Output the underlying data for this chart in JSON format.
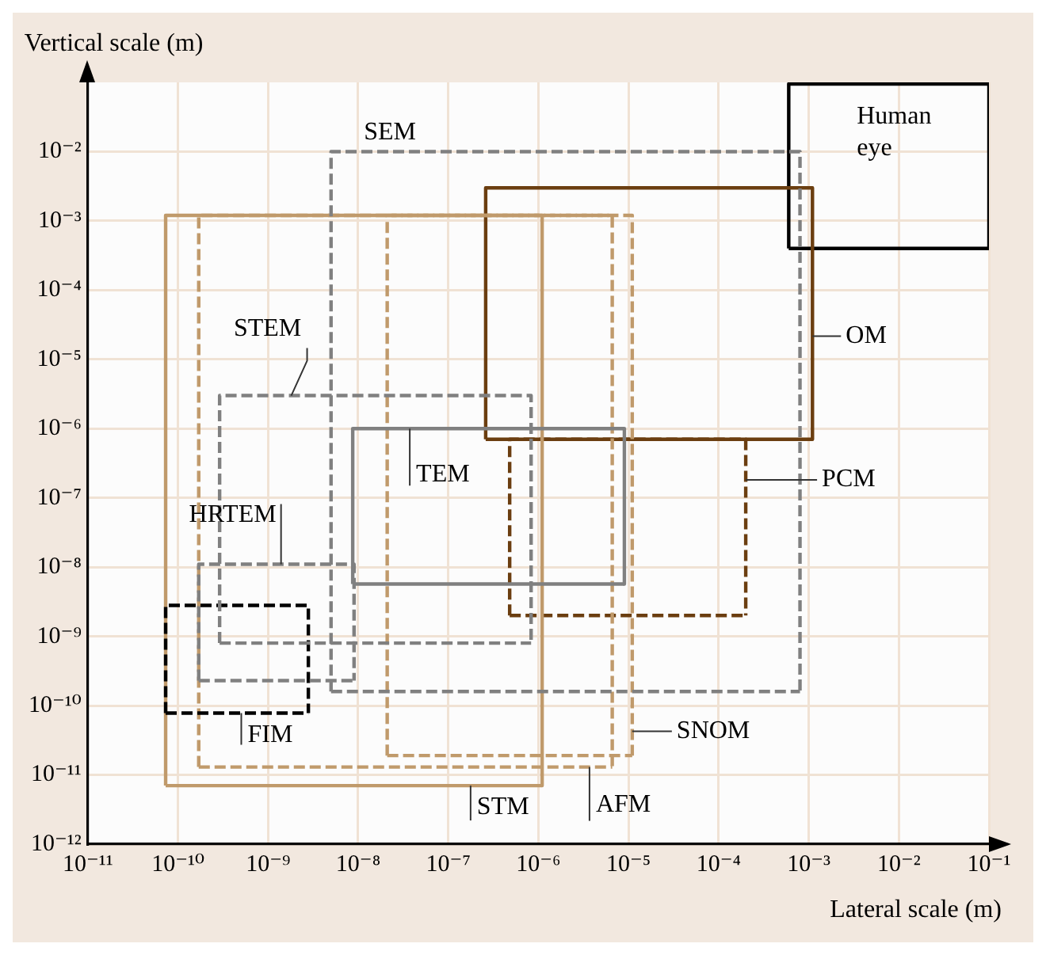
{
  "chart_data": {
    "type": "line",
    "xlabel": "Lateral scale (m)",
    "ylabel": "Vertical scale (m)",
    "log": "xy",
    "grid": true,
    "legend": false,
    "marker": "none",
    "xlim": [
      1e-11,
      0.1
    ],
    "ylim": [
      1e-12,
      0.1
    ],
    "xticks": [
      {
        "value": 1e-11,
        "label": "10⁻¹¹"
      },
      {
        "value": 1e-10,
        "label": "10⁻¹⁰"
      },
      {
        "value": 1e-09,
        "label": "10⁻⁹"
      },
      {
        "value": 1e-08,
        "label": "10⁻⁸"
      },
      {
        "value": 1e-07,
        "label": "10⁻⁷"
      },
      {
        "value": 1e-06,
        "label": "10⁻⁶"
      },
      {
        "value": 1e-05,
        "label": "10⁻⁵"
      },
      {
        "value": 0.0001,
        "label": "10⁻⁴"
      },
      {
        "value": 0.001,
        "label": "10⁻³"
      },
      {
        "value": 0.01,
        "label": "10⁻²"
      },
      {
        "value": 0.1,
        "label": "10⁻¹"
      }
    ],
    "yticks": [
      {
        "value": 1e-12,
        "label": "10⁻¹²"
      },
      {
        "value": 1e-11,
        "label": "10⁻¹¹"
      },
      {
        "value": 1e-10,
        "label": "10⁻¹⁰"
      },
      {
        "value": 1e-09,
        "label": "10⁻⁹"
      },
      {
        "value": 1e-08,
        "label": "10⁻⁸"
      },
      {
        "value": 1e-07,
        "label": "10⁻⁷"
      },
      {
        "value": 1e-06,
        "label": "10⁻⁶"
      },
      {
        "value": 1e-05,
        "label": "10⁻⁵"
      },
      {
        "value": 0.0001,
        "label": "10⁻⁴"
      },
      {
        "value": 0.001,
        "label": "10⁻³"
      },
      {
        "value": 0.01,
        "label": "10⁻²"
      }
    ],
    "series": [
      {
        "name": "SEM",
        "color": "#808080",
        "line_style": "dashed",
        "x": [
          5e-09,
          5e-09,
          0.0008,
          0.0008
        ],
        "values": [
          1.6e-10,
          0.01,
          0.01,
          1.6e-10
        ]
      },
      {
        "color": "#808080",
        "line_style": "dashed",
        "x": [
          5e-09,
          0.0008
        ],
        "values": [
          1.6e-10,
          1.6e-10
        ]
      },
      {
        "name": "STEM",
        "color": "#808080",
        "line_style": "dashed",
        "x": [
          2.9e-10,
          2.9e-10,
          8.3e-07,
          8.3e-07
        ],
        "values": [
          8e-10,
          3e-06,
          3e-06,
          8e-10
        ]
      },
      {
        "color": "#808080",
        "line_style": "dashed",
        "x": [
          2.9e-10,
          8.3e-07
        ],
        "values": [
          8e-10,
          8e-10
        ]
      },
      {
        "name": "HRTEM",
        "color": "#808080",
        "line_style": "dashed",
        "x": [
          1.7e-10,
          1.7e-10,
          9e-09,
          9e-09
        ],
        "values": [
          2.3e-10,
          1.1e-08,
          1.1e-08,
          2.3e-10
        ]
      },
      {
        "color": "#808080",
        "line_style": "dashed",
        "x": [
          1.7e-10,
          9e-09
        ],
        "values": [
          2.3e-10,
          2.3e-10
        ]
      },
      {
        "name": "TEM",
        "color": "#808080",
        "line_style": "solid",
        "x": [
          8.7e-09,
          8.7e-09,
          9e-06,
          9e-06
        ],
        "values": [
          5.7e-09,
          1e-06,
          1e-06,
          5.7e-09
        ]
      },
      {
        "color": "#808080",
        "line_style": "solid",
        "x": [
          8.7e-09,
          9e-06
        ],
        "values": [
          5.7e-09,
          5.7e-09
        ]
      },
      {
        "name": "FIM",
        "color": "#000000",
        "line_style": "dashed",
        "x": [
          7.3e-11,
          7.3e-11,
          2.8e-09,
          2.8e-09
        ],
        "values": [
          7.8e-11,
          2.8e-09,
          2.8e-09,
          7.8e-11
        ]
      },
      {
        "color": "#000000",
        "line_style": "dashed",
        "x": [
          7.3e-11,
          2.8e-09
        ],
        "values": [
          7.8e-11,
          7.8e-11
        ]
      },
      {
        "name": "STM",
        "color": "#c09a6b",
        "line_style": "solid",
        "x": [
          7.3e-11,
          7.3e-11,
          1.1e-06,
          1.1e-06
        ],
        "values": [
          7e-12,
          0.0012,
          0.0012,
          7e-12
        ]
      },
      {
        "color": "#c09a6b",
        "line_style": "solid",
        "x": [
          7.3e-11,
          1.1e-06
        ],
        "values": [
          7e-12,
          7e-12
        ]
      },
      {
        "name": "AFM",
        "color": "#c09a6b",
        "line_style": "dashed",
        "x": [
          1.7e-10,
          1.7e-10,
          6.6e-06,
          6.6e-06
        ],
        "values": [
          1.3e-11,
          0.0012,
          0.0012,
          1.3e-11
        ]
      },
      {
        "color": "#c09a6b",
        "line_style": "dashed",
        "x": [
          1.7e-10,
          6.6e-06
        ],
        "values": [
          1.3e-11,
          1.3e-11
        ]
      },
      {
        "name": "SNOM",
        "color": "#c09a6b",
        "line_style": "dashed",
        "x": [
          2.1e-08,
          2.1e-08,
          1.1e-05,
          1.1e-05
        ],
        "values": [
          1.9e-11,
          0.0012,
          0.0012,
          1.9e-11
        ]
      },
      {
        "color": "#c09a6b",
        "line_style": "dashed",
        "x": [
          2.1e-08,
          1.1e-05
        ],
        "values": [
          1.9e-11,
          1.9e-11
        ]
      },
      {
        "name": "PCM",
        "color": "#6b3e10",
        "line_style": "dashed",
        "x": [
          4.8e-07,
          4.8e-07,
          0.0002,
          0.0002
        ],
        "values": [
          2e-09,
          7e-07,
          7e-07,
          2e-09
        ]
      },
      {
        "color": "#6b3e10",
        "line_style": "dashed",
        "x": [
          4.8e-07,
          0.0002
        ],
        "values": [
          2e-09,
          2e-09
        ]
      },
      {
        "name": "OM",
        "color": "#6b3e10",
        "line_style": "solid",
        "x": [
          2.6e-07,
          2.6e-07,
          0.0011,
          0.0011
        ],
        "values": [
          7e-07,
          0.003,
          0.003,
          7e-07
        ]
      },
      {
        "color": "#6b3e10",
        "line_style": "solid",
        "x": [
          2.6e-07,
          0.0011
        ],
        "values": [
          7e-07,
          7e-07
        ]
      },
      {
        "name": "Human eye",
        "color": "#000000",
        "line_style": "solid",
        "x": [
          0.0006,
          0.0006,
          0.1,
          0.1
        ],
        "values": [
          0.0004,
          0.095,
          0.095,
          0.0004
        ]
      },
      {
        "color": "#000000",
        "line_style": "solid",
        "x": [
          0.0006,
          0.1
        ],
        "values": [
          0.0004,
          0.0004
        ]
      }
    ]
  }
}
